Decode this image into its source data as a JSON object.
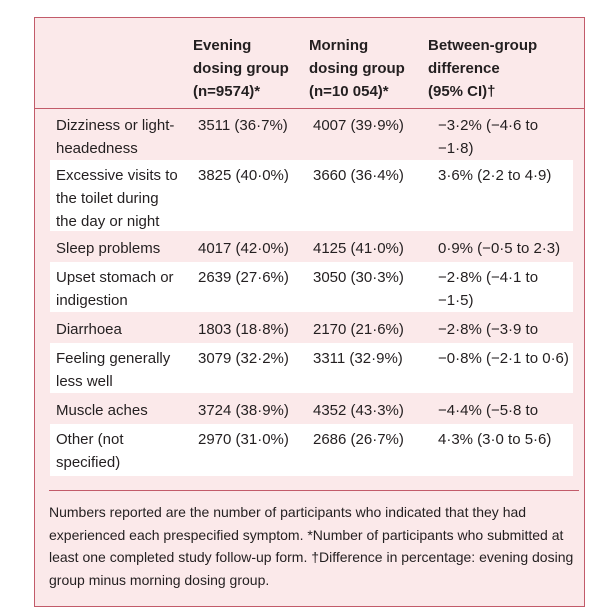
{
  "table": {
    "headers": [
      "",
      "Evening\ndosing group\n(n=9574)*",
      "Morning\ndosing group\n(n=10 054)*",
      "Between-group\ndifference\n(95% CI)†"
    ],
    "rows": [
      {
        "symptom": "Dizziness or light-\nheadedness",
        "evening": "3511 (36·7%)",
        "morning": "4007 (39·9%)",
        "difference": "−3·2% (−4·6 to −1·8)"
      },
      {
        "symptom": "Excessive visits to\nthe toilet during\nthe day or night",
        "evening": "3825 (40·0%)",
        "morning": "3660 (36·4%)",
        "difference": "3·6% (2·2 to 4·9)"
      },
      {
        "symptom": "Sleep problems",
        "evening": "4017 (42·0%)",
        "morning": "4125 (41·0%)",
        "difference": "0·9% (−0·5 to 2·3)"
      },
      {
        "symptom": "Upset stomach or\nindigestion",
        "evening": "2639 (27·6%)",
        "morning": "3050 (30·3%)",
        "difference": "−2·8% (−4·1 to −1·5)"
      },
      {
        "symptom": "Diarrhoea",
        "evening": "1803 (18·8%)",
        "morning": "2170 (21·6%)",
        "difference": "−2·8% (−3·9 to −1·6)"
      },
      {
        "symptom": "Feeling generally\nless well",
        "evening": "3079 (32·2%)",
        "morning": "3311 (32·9%)",
        "difference": "−0·8% (−2·1 to 0·6)"
      },
      {
        "symptom": "Muscle aches",
        "evening": "3724 (38·9%)",
        "morning": "4352 (43·3%)",
        "difference": "−4·4% (−5·8 to −3·0)"
      },
      {
        "symptom": "Other (not\nspecified)",
        "evening": "2970 (31·0%)",
        "morning": "2686 (26·7%)",
        "difference": "4·3% (3·0 to 5·6)"
      }
    ],
    "footnote": "Numbers reported are the number of participants who indicated that they had experienced each prespecified symptom. *Number of participants who submitted at least one completed study follow-up form. †Difference in percentage: evening dosing group minus morning dosing group."
  },
  "colors": {
    "background": "#fbe9ea",
    "border": "#c25b6a",
    "row_alt": "#ffffff",
    "text": "#231f20"
  }
}
